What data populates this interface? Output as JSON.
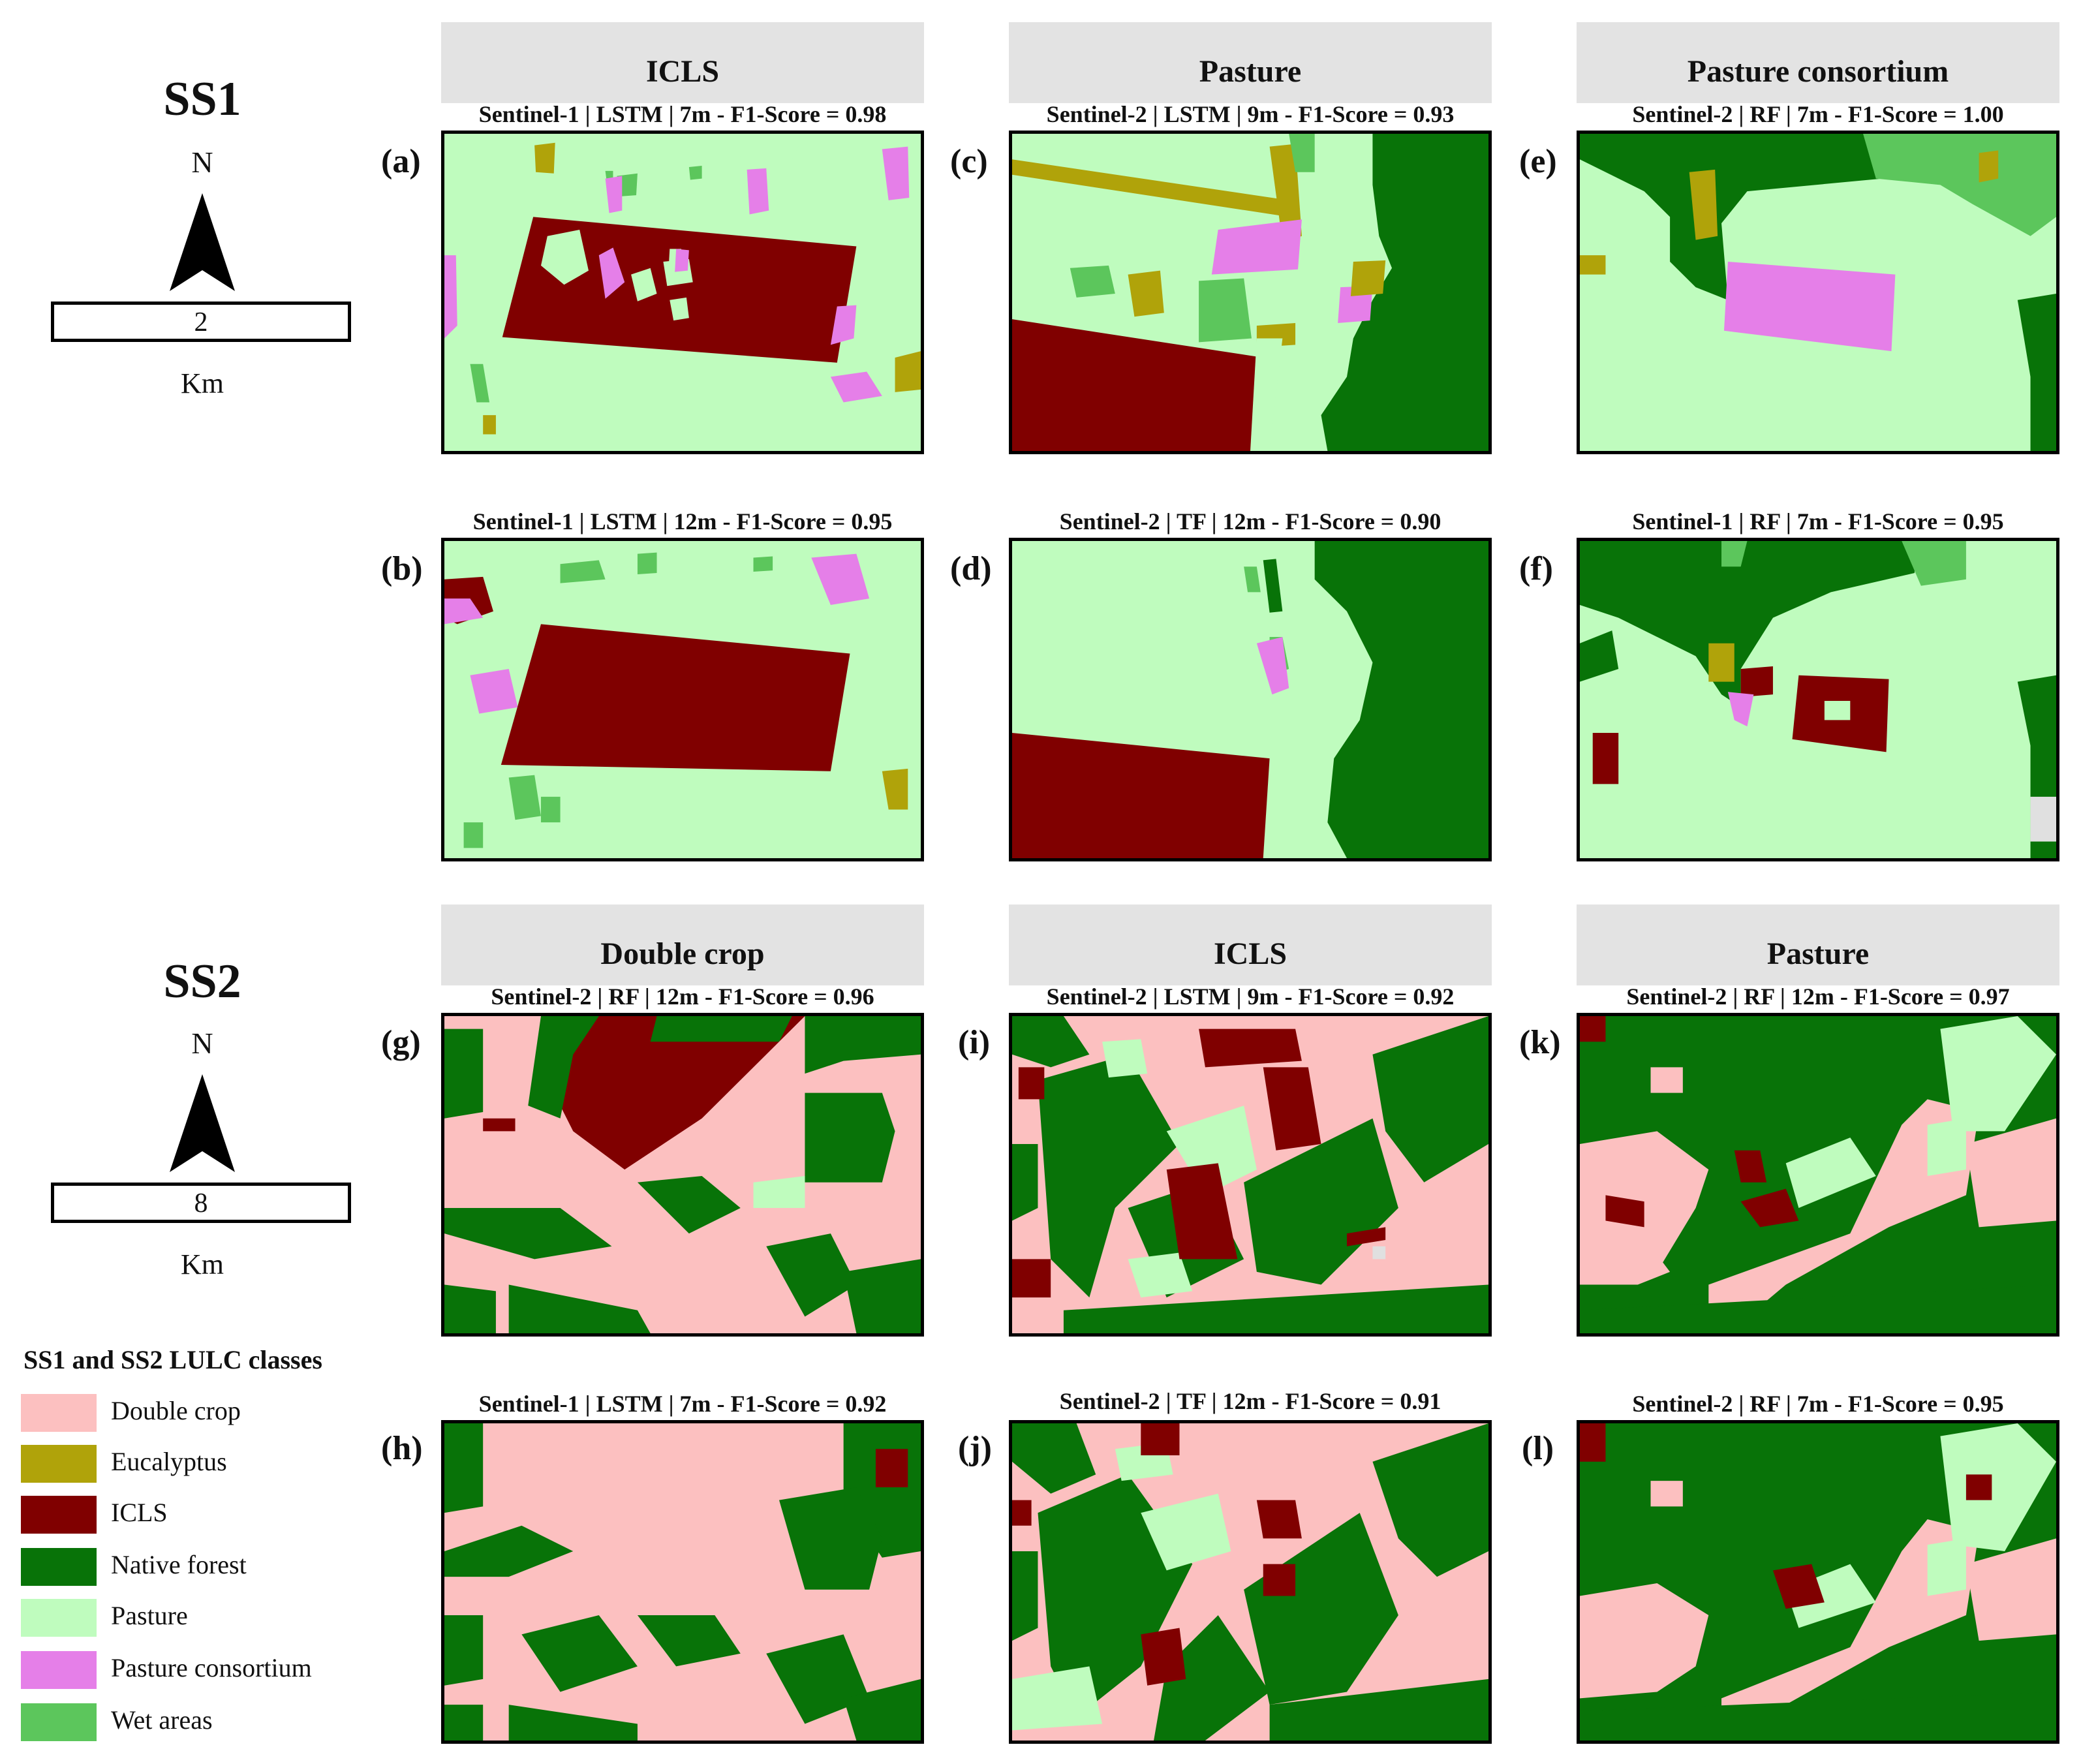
{
  "colors": {
    "double_crop": "#fcc0c0",
    "eucalyptus": "#b0a30a",
    "icls": "#800000",
    "native_forest": "#087308",
    "pasture": "#bffcbe",
    "pasture_consortium": "#e57fe8",
    "wet_areas": "#5cc65c",
    "header_bg": "#e3e3e3"
  },
  "ss1": {
    "title": "SS1",
    "north": "N",
    "scale": "2",
    "unit": "Km"
  },
  "ss2": {
    "title": "SS2",
    "north": "N",
    "scale": "8",
    "unit": "Km"
  },
  "columns": {
    "ss1": [
      "ICLS",
      "Pasture",
      "Pasture consortium"
    ],
    "ss2": [
      "Double crop",
      "ICLS",
      "Pasture"
    ]
  },
  "panels": [
    {
      "label": "(a)",
      "caption": "Sentinel-1 | LSTM | 7m - F1-Score = 0.98"
    },
    {
      "label": "(b)",
      "caption": "Sentinel-1 | LSTM | 12m - F1-Score = 0.95"
    },
    {
      "label": "(c)",
      "caption": "Sentinel-2 | LSTM | 9m - F1-Score = 0.93"
    },
    {
      "label": "(d)",
      "caption": "Sentinel-2 | TF | 12m - F1-Score = 0.90"
    },
    {
      "label": "(e)",
      "caption": "Sentinel-2 | RF | 7m - F1-Score = 1.00"
    },
    {
      "label": "(f)",
      "caption": "Sentinel-1 | RF | 7m - F1-Score = 0.95"
    },
    {
      "label": "(g)",
      "caption": "Sentinel-2 | RF | 12m - F1-Score = 0.96"
    },
    {
      "label": "(h)",
      "caption": "Sentinel-1 | LSTM | 7m - F1-Score = 0.92"
    },
    {
      "label": "(i)",
      "caption": "Sentinel-2 | LSTM | 9m - F1-Score = 0.92"
    },
    {
      "label": "(j)",
      "caption": "Sentinel-2 | TF | 12m - F1-Score = 0.91"
    },
    {
      "label": "(k)",
      "caption": "Sentinel-2 | RF | 12m - F1-Score = 0.97"
    },
    {
      "label": "(l)",
      "caption": "Sentinel-2 | RF | 7m - F1-Score = 0.95"
    }
  ],
  "legend": {
    "title": "SS1 and SS2 LULC classes",
    "items": [
      {
        "label": "Double crop",
        "color": "#fcc0c0"
      },
      {
        "label": "Eucalyptus",
        "color": "#b0a30a"
      },
      {
        "label": "ICLS",
        "color": "#800000"
      },
      {
        "label": "Native forest",
        "color": "#087308"
      },
      {
        "label": "Pasture",
        "color": "#bffcbe"
      },
      {
        "label": "Pasture consortium",
        "color": "#e57fe8"
      },
      {
        "label": "Wet areas",
        "color": "#5cc65c"
      }
    ]
  }
}
